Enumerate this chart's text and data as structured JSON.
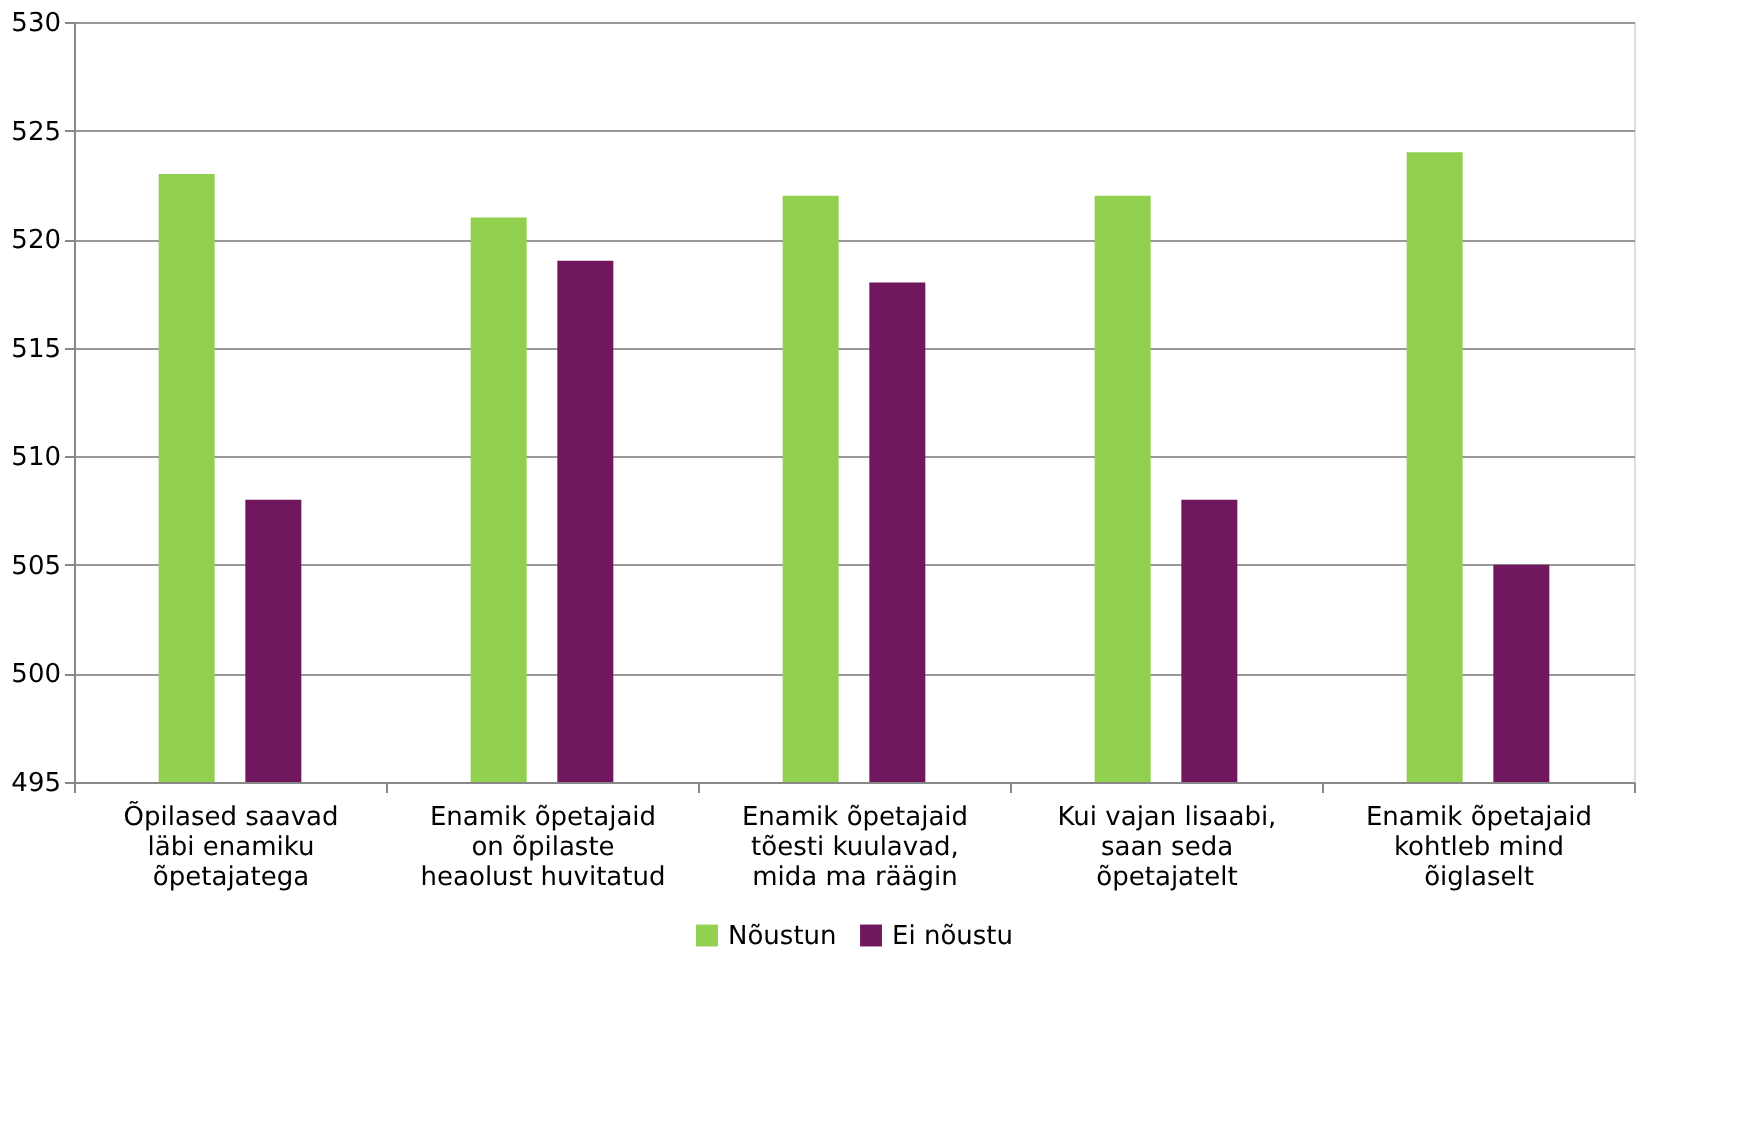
{
  "chart_data": {
    "type": "bar",
    "categories": [
      "Õpilased saavad läbi enamiku õpetajatega",
      "Enamik õpetajaid on õpilaste heaolust huvitatud",
      "Enamik õpetajaid tõesti kuulavad, mida ma räägin",
      "Kui vajan lisaabi, saan seda õpetajatelt",
      "Enamik õpetajaid kohtleb mind õiglaselt"
    ],
    "series": [
      {
        "name": "Nõustun",
        "color": "#92d050",
        "values": [
          523,
          521,
          522,
          522,
          524
        ]
      },
      {
        "name": "Ei nõustu",
        "color": "#70175e",
        "values": [
          508,
          519,
          518,
          508,
          505
        ]
      }
    ],
    "ylim": [
      495,
      530
    ],
    "yticks": [
      495,
      500,
      505,
      510,
      515,
      520,
      525,
      530
    ],
    "grid": "y",
    "legend": "bottom"
  }
}
